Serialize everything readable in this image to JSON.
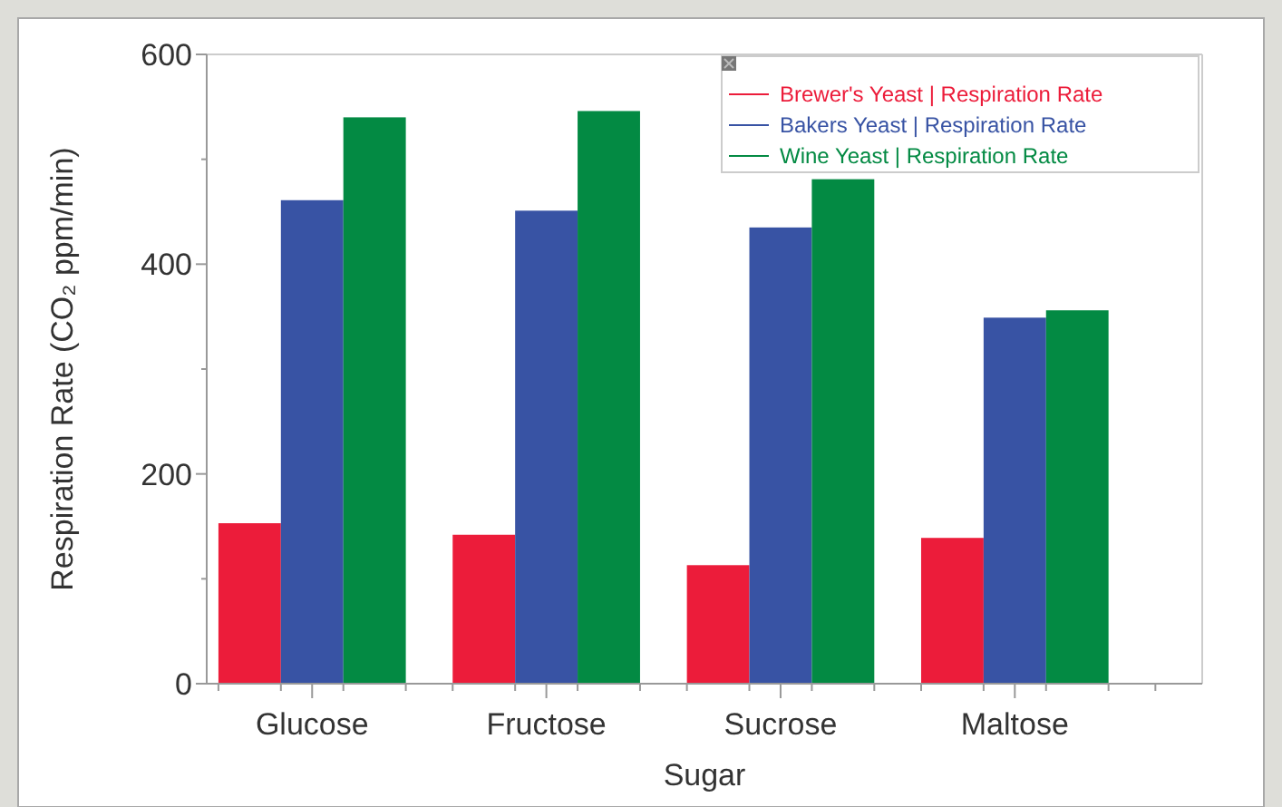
{
  "chart_data": {
    "type": "bar",
    "xlabel": "Sugar",
    "ylabel": "Respiration Rate (CO₂ ppm/min)",
    "categories": [
      "Glucose",
      "Fructose",
      "Sucrose",
      "Maltose"
    ],
    "series": [
      {
        "name": "Brewer's Yeast | Respiration Rate",
        "color": "#ec1c3a",
        "values": [
          153,
          142,
          113,
          139
        ]
      },
      {
        "name": "Bakers Yeast | Respiration Rate",
        "color": "#3853a4",
        "values": [
          461,
          451,
          435,
          349
        ]
      },
      {
        "name": "Wine Yeast | Respiration Rate",
        "color": "#038a43",
        "values": [
          540,
          546,
          481,
          356
        ]
      }
    ],
    "ylim": [
      0,
      600
    ],
    "yticks": [
      0,
      {
        "value": 100,
        "label": null
      },
      200,
      {
        "value": 300,
        "label": null
      },
      400,
      {
        "value": 500,
        "label": null
      },
      600
    ],
    "grid": false,
    "legend": "top right"
  }
}
